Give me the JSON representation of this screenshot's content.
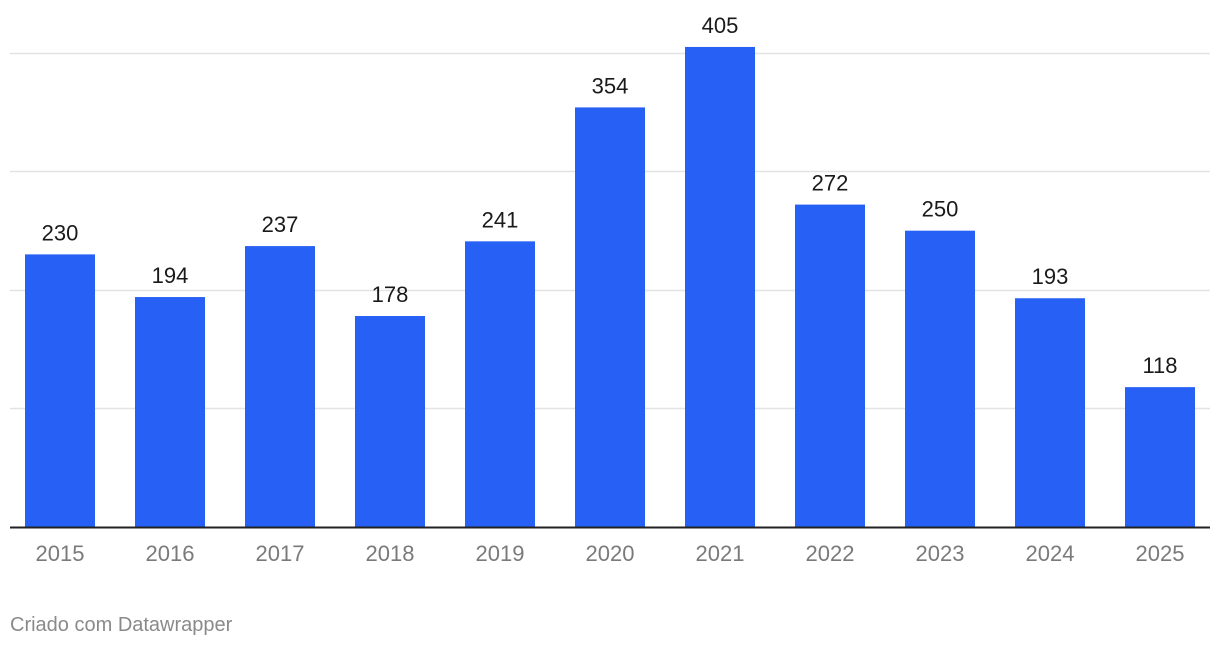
{
  "chart_data": {
    "type": "bar",
    "categories": [
      "2015",
      "2016",
      "2017",
      "2018",
      "2019",
      "2020",
      "2021",
      "2022",
      "2023",
      "2024",
      "2025"
    ],
    "values": [
      230,
      194,
      237,
      178,
      241,
      354,
      405,
      272,
      250,
      193,
      118
    ],
    "ylim": [
      0,
      400
    ],
    "grid": true,
    "gridlines": [
      100,
      200,
      300,
      400
    ],
    "data_labels": true,
    "colors": {
      "bar": "#2760f4",
      "gridline": "#e3e3e3",
      "baseline": "#222222",
      "tick_label": "#7a7a7a",
      "data_label": "#1a1a1a"
    }
  },
  "footer": {
    "credit": "Criado com Datawrapper"
  }
}
